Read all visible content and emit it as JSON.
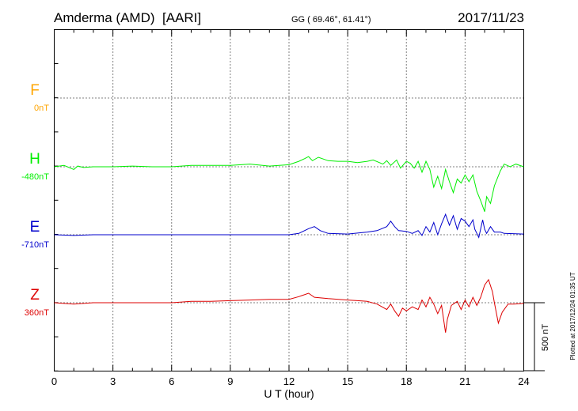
{
  "header": {
    "station": "Amderma (AMD)",
    "observatory": "[AARI]",
    "coords": "GG ( 69.46°,  61.41°)",
    "date": "2017/11/23"
  },
  "plotted_note": "Plotted at 2017/12/24 01:35 UT",
  "scale_label": "500 nT",
  "chart_data": {
    "type": "line",
    "xlabel": "U T (hour)",
    "xlim": [
      0,
      24
    ],
    "x_ticks": [
      "0",
      "3",
      "6",
      "9",
      "12",
      "15",
      "18",
      "21",
      "24"
    ],
    "grid": true,
    "series": [
      {
        "name": "F",
        "baseline": "0nT",
        "color": "#ffa500",
        "points": []
      },
      {
        "name": "H",
        "baseline": "-480nT",
        "color": "#00ee00",
        "points": [
          [
            0,
            0
          ],
          [
            0.5,
            10
          ],
          [
            1.0,
            -20
          ],
          [
            1.2,
            5
          ],
          [
            1.5,
            -5
          ],
          [
            2,
            0
          ],
          [
            3,
            0
          ],
          [
            4,
            5
          ],
          [
            5,
            0
          ],
          [
            6,
            0
          ],
          [
            7,
            10
          ],
          [
            8,
            10
          ],
          [
            9,
            10
          ],
          [
            10,
            20
          ],
          [
            11,
            5
          ],
          [
            12,
            15
          ],
          [
            12.5,
            40
          ],
          [
            12.8,
            60
          ],
          [
            13,
            75
          ],
          [
            13.2,
            45
          ],
          [
            13.5,
            70
          ],
          [
            14,
            45
          ],
          [
            14.5,
            40
          ],
          [
            15,
            40
          ],
          [
            15.5,
            30
          ],
          [
            16,
            40
          ],
          [
            16.3,
            50
          ],
          [
            16.8,
            20
          ],
          [
            17,
            45
          ],
          [
            17.2,
            10
          ],
          [
            17.5,
            50
          ],
          [
            17.7,
            -10
          ],
          [
            18,
            40
          ],
          [
            18.2,
            25
          ],
          [
            18.4,
            -10
          ],
          [
            18.6,
            40
          ],
          [
            18.8,
            -40
          ],
          [
            19.0,
            40
          ],
          [
            19.2,
            -20
          ],
          [
            19.4,
            -150
          ],
          [
            19.6,
            -70
          ],
          [
            19.8,
            -160
          ],
          [
            20.0,
            -20
          ],
          [
            20.2,
            -110
          ],
          [
            20.4,
            -190
          ],
          [
            20.6,
            -90
          ],
          [
            20.8,
            -120
          ],
          [
            21.0,
            -60
          ],
          [
            21.2,
            -110
          ],
          [
            21.4,
            -60
          ],
          [
            21.6,
            -180
          ],
          [
            21.8,
            -250
          ],
          [
            22.0,
            -330
          ],
          [
            22.1,
            -220
          ],
          [
            22.3,
            -270
          ],
          [
            22.5,
            -140
          ],
          [
            22.8,
            -30
          ],
          [
            23,
            20
          ],
          [
            23.3,
            0
          ],
          [
            23.6,
            20
          ],
          [
            24,
            0
          ]
        ]
      },
      {
        "name": "E",
        "baseline": "-710nT",
        "color": "#0000cc",
        "points": [
          [
            0,
            0
          ],
          [
            1,
            -5
          ],
          [
            2,
            0
          ],
          [
            3,
            0
          ],
          [
            4,
            0
          ],
          [
            5,
            0
          ],
          [
            6,
            0
          ],
          [
            7,
            0
          ],
          [
            8,
            0
          ],
          [
            9,
            0
          ],
          [
            10,
            0
          ],
          [
            11,
            0
          ],
          [
            12,
            0
          ],
          [
            12.5,
            10
          ],
          [
            13,
            45
          ],
          [
            13.3,
            60
          ],
          [
            13.6,
            30
          ],
          [
            14,
            10
          ],
          [
            15,
            5
          ],
          [
            16,
            20
          ],
          [
            16.5,
            30
          ],
          [
            17,
            60
          ],
          [
            17.2,
            100
          ],
          [
            17.4,
            60
          ],
          [
            17.6,
            30
          ],
          [
            18,
            25
          ],
          [
            18.3,
            10
          ],
          [
            18.6,
            30
          ],
          [
            18.8,
            -5
          ],
          [
            19.0,
            60
          ],
          [
            19.2,
            20
          ],
          [
            19.4,
            90
          ],
          [
            19.6,
            0
          ],
          [
            19.8,
            80
          ],
          [
            20,
            150
          ],
          [
            20.2,
            70
          ],
          [
            20.4,
            140
          ],
          [
            20.6,
            40
          ],
          [
            20.8,
            120
          ],
          [
            21.0,
            100
          ],
          [
            21.2,
            60
          ],
          [
            21.4,
            110
          ],
          [
            21.5,
            40
          ],
          [
            21.7,
            -20
          ],
          [
            21.9,
            110
          ],
          [
            22.0,
            40
          ],
          [
            22.1,
            10
          ],
          [
            22.3,
            60
          ],
          [
            22.5,
            20
          ],
          [
            22.8,
            20
          ],
          [
            23,
            10
          ],
          [
            24,
            5
          ]
        ]
      },
      {
        "name": "Z",
        "baseline": "360nT",
        "color": "#dd0000",
        "points": [
          [
            0,
            0
          ],
          [
            1,
            -10
          ],
          [
            1.5,
            -5
          ],
          [
            2,
            0
          ],
          [
            3,
            0
          ],
          [
            4,
            0
          ],
          [
            5,
            0
          ],
          [
            6,
            0
          ],
          [
            7,
            10
          ],
          [
            8,
            10
          ],
          [
            9,
            15
          ],
          [
            10,
            20
          ],
          [
            11,
            25
          ],
          [
            12,
            25
          ],
          [
            12.5,
            45
          ],
          [
            13,
            70
          ],
          [
            13.3,
            40
          ],
          [
            14,
            30
          ],
          [
            15,
            20
          ],
          [
            15.5,
            15
          ],
          [
            16,
            10
          ],
          [
            16.5,
            -10
          ],
          [
            17,
            -50
          ],
          [
            17.2,
            -10
          ],
          [
            17.4,
            -60
          ],
          [
            17.6,
            -100
          ],
          [
            17.8,
            -40
          ],
          [
            18,
            -60
          ],
          [
            18.3,
            -30
          ],
          [
            18.6,
            -50
          ],
          [
            18.8,
            20
          ],
          [
            19.0,
            -30
          ],
          [
            19.2,
            40
          ],
          [
            19.4,
            -10
          ],
          [
            19.6,
            -80
          ],
          [
            19.8,
            -20
          ],
          [
            20,
            -220
          ],
          [
            20.1,
            -120
          ],
          [
            20.3,
            -20
          ],
          [
            20.6,
            10
          ],
          [
            20.8,
            -50
          ],
          [
            21.0,
            20
          ],
          [
            21.2,
            -30
          ],
          [
            21.4,
            40
          ],
          [
            21.6,
            -20
          ],
          [
            21.8,
            40
          ],
          [
            22.0,
            130
          ],
          [
            22.2,
            170
          ],
          [
            22.4,
            80
          ],
          [
            22.5,
            0
          ],
          [
            22.7,
            -150
          ],
          [
            22.9,
            -70
          ],
          [
            23.2,
            -10
          ],
          [
            23.5,
            -10
          ],
          [
            24,
            -5
          ]
        ]
      }
    ]
  }
}
